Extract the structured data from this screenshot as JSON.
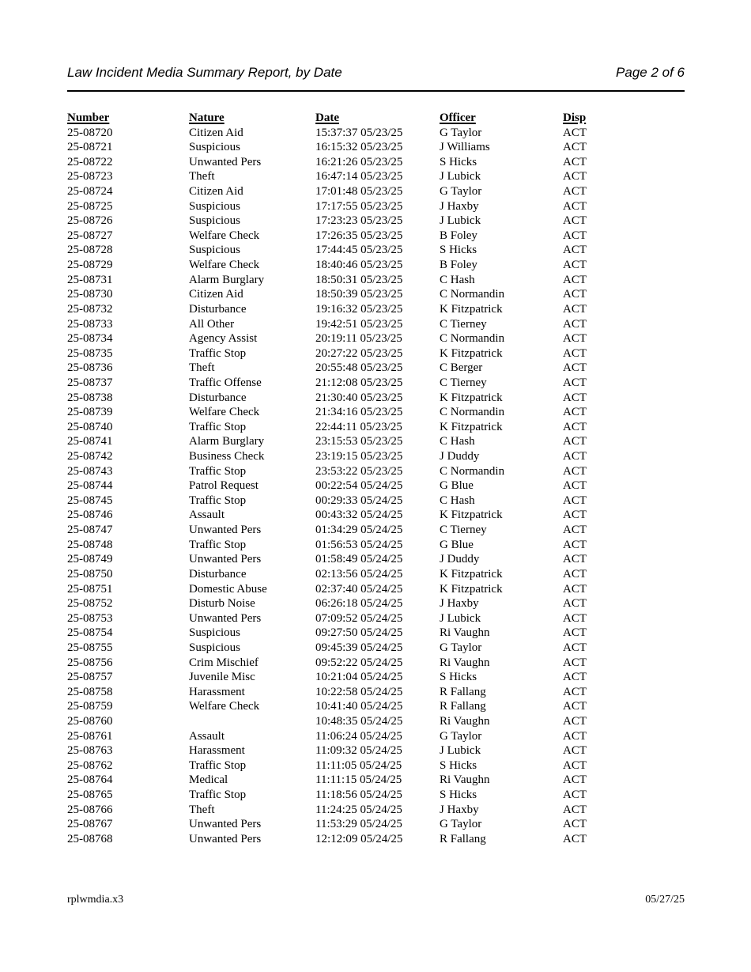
{
  "header": {
    "title": "Law Incident Media Summary Report, by Date",
    "page_label": "Page 2 of 6"
  },
  "table": {
    "columns": [
      "Number",
      "Nature",
      "Date",
      "Officer",
      "Disp"
    ],
    "rows": [
      [
        "25-08720",
        "Citizen Aid",
        "15:37:37 05/23/25",
        "G Taylor",
        "ACT"
      ],
      [
        "25-08721",
        "Suspicious",
        "16:15:32 05/23/25",
        "J Williams",
        "ACT"
      ],
      [
        "25-08722",
        "Unwanted Pers",
        "16:21:26 05/23/25",
        "S Hicks",
        "ACT"
      ],
      [
        "25-08723",
        "Theft",
        "16:47:14 05/23/25",
        "J Lubick",
        "ACT"
      ],
      [
        "25-08724",
        "Citizen Aid",
        "17:01:48 05/23/25",
        "G Taylor",
        "ACT"
      ],
      [
        "25-08725",
        "Suspicious",
        "17:17:55 05/23/25",
        "J Haxby",
        "ACT"
      ],
      [
        "25-08726",
        "Suspicious",
        "17:23:23 05/23/25",
        "J Lubick",
        "ACT"
      ],
      [
        "25-08727",
        "Welfare Check",
        "17:26:35 05/23/25",
        "B Foley",
        "ACT"
      ],
      [
        "25-08728",
        "Suspicious",
        "17:44:45 05/23/25",
        "S Hicks",
        "ACT"
      ],
      [
        "25-08729",
        "Welfare Check",
        "18:40:46 05/23/25",
        "B Foley",
        "ACT"
      ],
      [
        "25-08731",
        "Alarm Burglary",
        "18:50:31 05/23/25",
        "C Hash",
        "ACT"
      ],
      [
        "25-08730",
        "Citizen Aid",
        "18:50:39 05/23/25",
        "C Normandin",
        "ACT"
      ],
      [
        "25-08732",
        "Disturbance",
        "19:16:32 05/23/25",
        "K Fitzpatrick",
        "ACT"
      ],
      [
        "25-08733",
        "All Other",
        "19:42:51 05/23/25",
        "C Tierney",
        "ACT"
      ],
      [
        "25-08734",
        "Agency Assist",
        "20:19:11 05/23/25",
        "C Normandin",
        "ACT"
      ],
      [
        "25-08735",
        "Traffic Stop",
        "20:27:22 05/23/25",
        "K Fitzpatrick",
        "ACT"
      ],
      [
        "25-08736",
        "Theft",
        "20:55:48 05/23/25",
        "C Berger",
        "ACT"
      ],
      [
        "25-08737",
        "Traffic Offense",
        "21:12:08 05/23/25",
        "C Tierney",
        "ACT"
      ],
      [
        "25-08738",
        "Disturbance",
        "21:30:40 05/23/25",
        "K Fitzpatrick",
        "ACT"
      ],
      [
        "25-08739",
        "Welfare Check",
        "21:34:16 05/23/25",
        "C Normandin",
        "ACT"
      ],
      [
        "25-08740",
        "Traffic Stop",
        "22:44:11 05/23/25",
        "K Fitzpatrick",
        "ACT"
      ],
      [
        "25-08741",
        "Alarm Burglary",
        "23:15:53 05/23/25",
        "C Hash",
        "ACT"
      ],
      [
        "25-08742",
        "Business Check",
        "23:19:15 05/23/25",
        "J Duddy",
        "ACT"
      ],
      [
        "25-08743",
        "Traffic Stop",
        "23:53:22 05/23/25",
        "C Normandin",
        "ACT"
      ],
      [
        "25-08744",
        "Patrol Request",
        "00:22:54 05/24/25",
        "G Blue",
        "ACT"
      ],
      [
        "25-08745",
        "Traffic Stop",
        "00:29:33 05/24/25",
        "C Hash",
        "ACT"
      ],
      [
        "25-08746",
        "Assault",
        "00:43:32 05/24/25",
        "K Fitzpatrick",
        "ACT"
      ],
      [
        "25-08747",
        "Unwanted Pers",
        "01:34:29 05/24/25",
        "C Tierney",
        "ACT"
      ],
      [
        "25-08748",
        "Traffic Stop",
        "01:56:53 05/24/25",
        "G Blue",
        "ACT"
      ],
      [
        "25-08749",
        "Unwanted Pers",
        "01:58:49 05/24/25",
        "J Duddy",
        "ACT"
      ],
      [
        "25-08750",
        "Disturbance",
        "02:13:56 05/24/25",
        "K Fitzpatrick",
        "ACT"
      ],
      [
        "25-08751",
        "Domestic Abuse",
        "02:37:40 05/24/25",
        "K Fitzpatrick",
        "ACT"
      ],
      [
        "25-08752",
        "Disturb Noise",
        "06:26:18 05/24/25",
        "J Haxby",
        "ACT"
      ],
      [
        "25-08753",
        "Unwanted Pers",
        "07:09:52 05/24/25",
        "J Lubick",
        "ACT"
      ],
      [
        "25-08754",
        "Suspicious",
        "09:27:50 05/24/25",
        "Ri Vaughn",
        "ACT"
      ],
      [
        "25-08755",
        "Suspicious",
        "09:45:39 05/24/25",
        "G Taylor",
        "ACT"
      ],
      [
        "25-08756",
        "Crim Mischief",
        "09:52:22 05/24/25",
        "Ri Vaughn",
        "ACT"
      ],
      [
        "25-08757",
        "Juvenile Misc",
        "10:21:04 05/24/25",
        "S Hicks",
        "ACT"
      ],
      [
        "25-08758",
        "Harassment",
        "10:22:58 05/24/25",
        "R Fallang",
        "ACT"
      ],
      [
        "25-08759",
        "Welfare Check",
        "10:41:40 05/24/25",
        "R Fallang",
        "ACT"
      ],
      [
        "25-08760",
        "",
        "10:48:35 05/24/25",
        "Ri Vaughn",
        "ACT"
      ],
      [
        "25-08761",
        "Assault",
        "11:06:24 05/24/25",
        "G Taylor",
        "ACT"
      ],
      [
        "25-08763",
        "Harassment",
        "11:09:32 05/24/25",
        "J Lubick",
        "ACT"
      ],
      [
        "25-08762",
        "Traffic Stop",
        "11:11:05 05/24/25",
        "S Hicks",
        "ACT"
      ],
      [
        "25-08764",
        "Medical",
        "11:11:15 05/24/25",
        "Ri Vaughn",
        "ACT"
      ],
      [
        "25-08765",
        "Traffic Stop",
        "11:18:56 05/24/25",
        "S Hicks",
        "ACT"
      ],
      [
        "25-08766",
        "Theft",
        "11:24:25 05/24/25",
        "J Haxby",
        "ACT"
      ],
      [
        "25-08767",
        "Unwanted Pers",
        "11:53:29 05/24/25",
        "G Taylor",
        "ACT"
      ],
      [
        "25-08768",
        "Unwanted Pers",
        "12:12:09 05/24/25",
        "R Fallang",
        "ACT"
      ]
    ]
  },
  "footer": {
    "left": "rplwmdia.x3",
    "right": "05/27/25"
  }
}
